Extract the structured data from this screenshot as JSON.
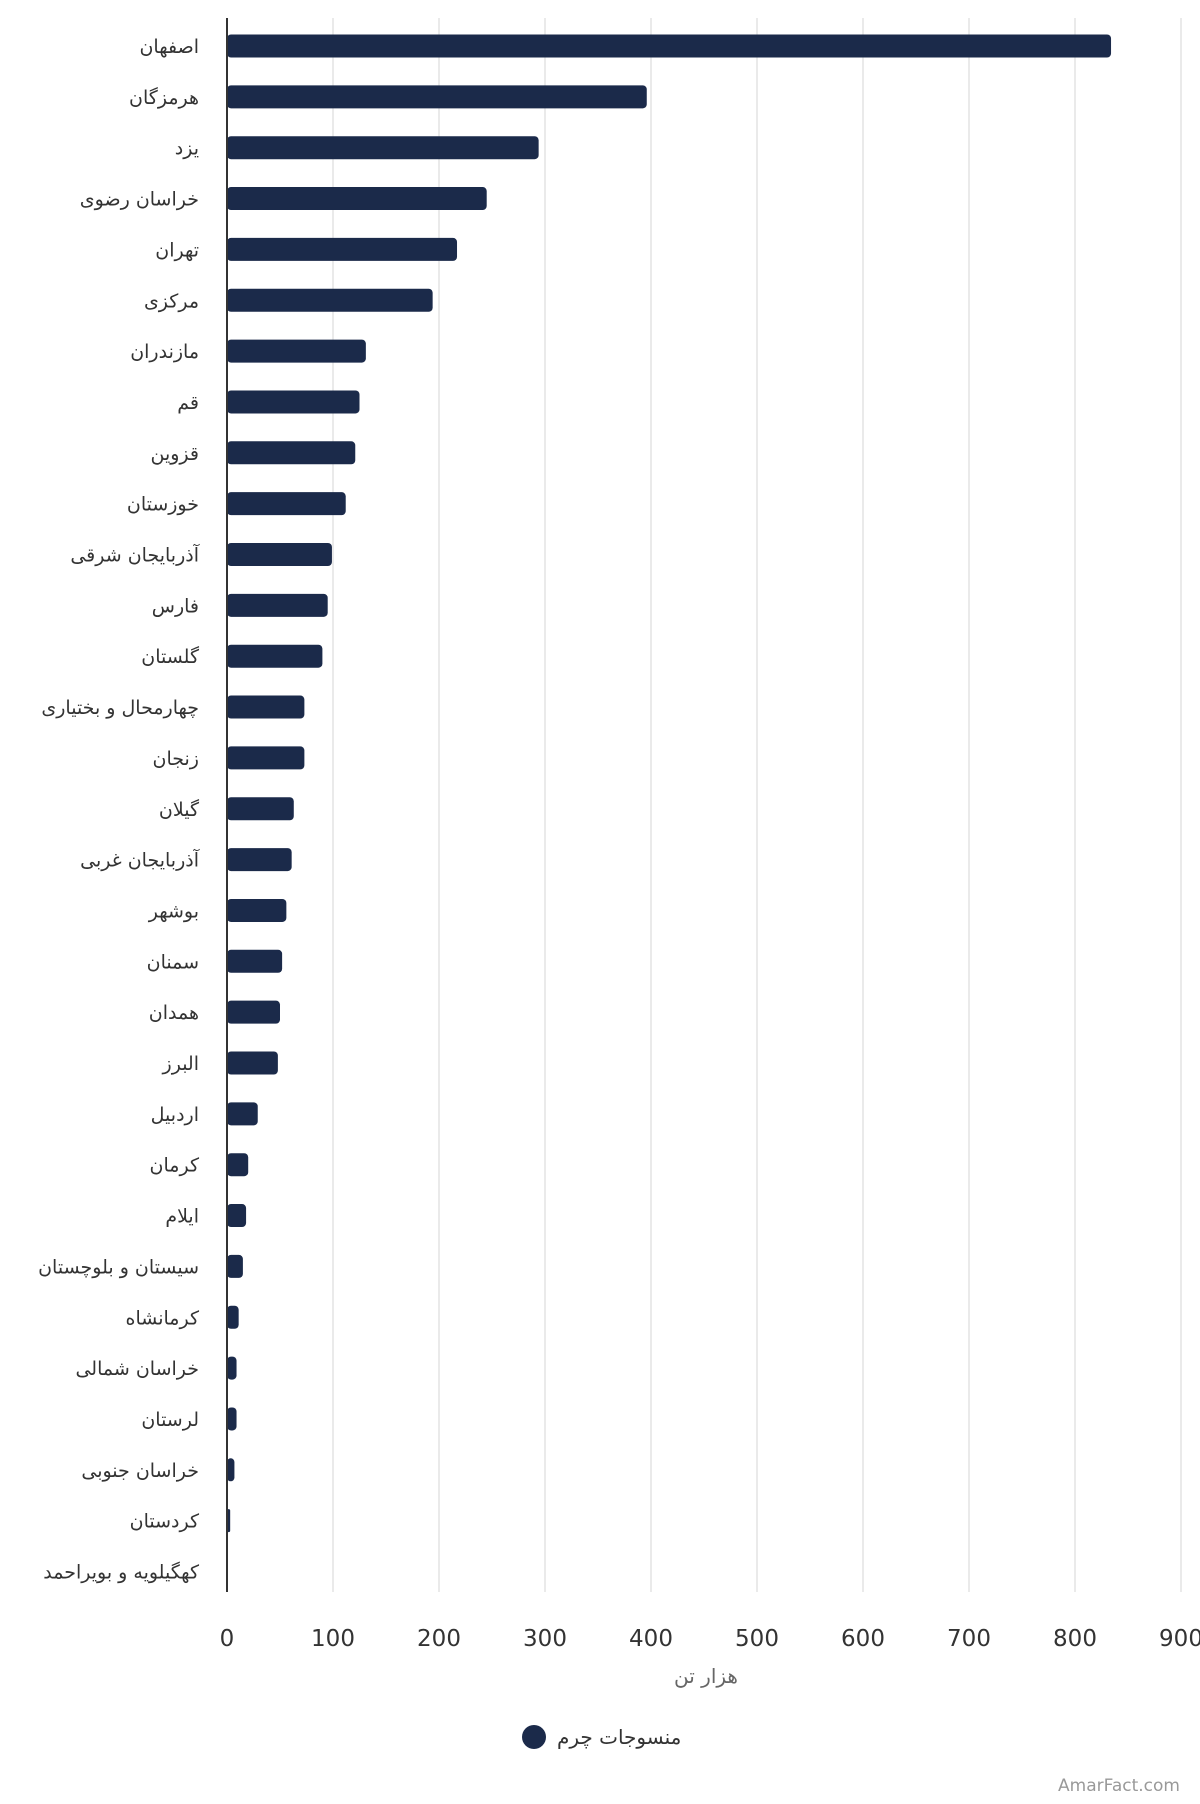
{
  "chart_data": {
    "type": "bar",
    "orientation": "horizontal",
    "categories": [
      "اصفهان",
      "هرمزگان",
      "یزد",
      "خراسان رضوی",
      "تهران",
      "مرکزی",
      "مازندران",
      "قم",
      "قزوین",
      "خوزستان",
      "آذربایجان شرقی",
      "فارس",
      "گلستان",
      "چهارمحال و بختیاری",
      "زنجان",
      "گیلان",
      "آذربایجان غربی",
      "بوشهر",
      "سمنان",
      "همدان",
      "البرز",
      "اردبیل",
      "کرمان",
      "ایلام",
      "سیستان و بلوچستان",
      "کرمانشاه",
      "خراسان شمالی",
      "لرستان",
      "خراسان جنوبی",
      "کردستان",
      "کهگیلویه و بویراحمد"
    ],
    "series": [
      {
        "name": "منسوجات چرم",
        "color": "#1b2a4a",
        "values": [
          834,
          396,
          294,
          245,
          217,
          194,
          131,
          125,
          121,
          112,
          99,
          95,
          90,
          73,
          73,
          63,
          61,
          56,
          52,
          50,
          48,
          29,
          20,
          18,
          15,
          11,
          9,
          9,
          7,
          3,
          0
        ]
      }
    ],
    "xlabel": "هزار تن",
    "xlim": [
      0,
      900
    ],
    "xticks": [
      0,
      100,
      200,
      300,
      400,
      500,
      600,
      700,
      800,
      900
    ],
    "grid": true,
    "legend_position": "bottom-center"
  },
  "credit": "AmarFact.com"
}
